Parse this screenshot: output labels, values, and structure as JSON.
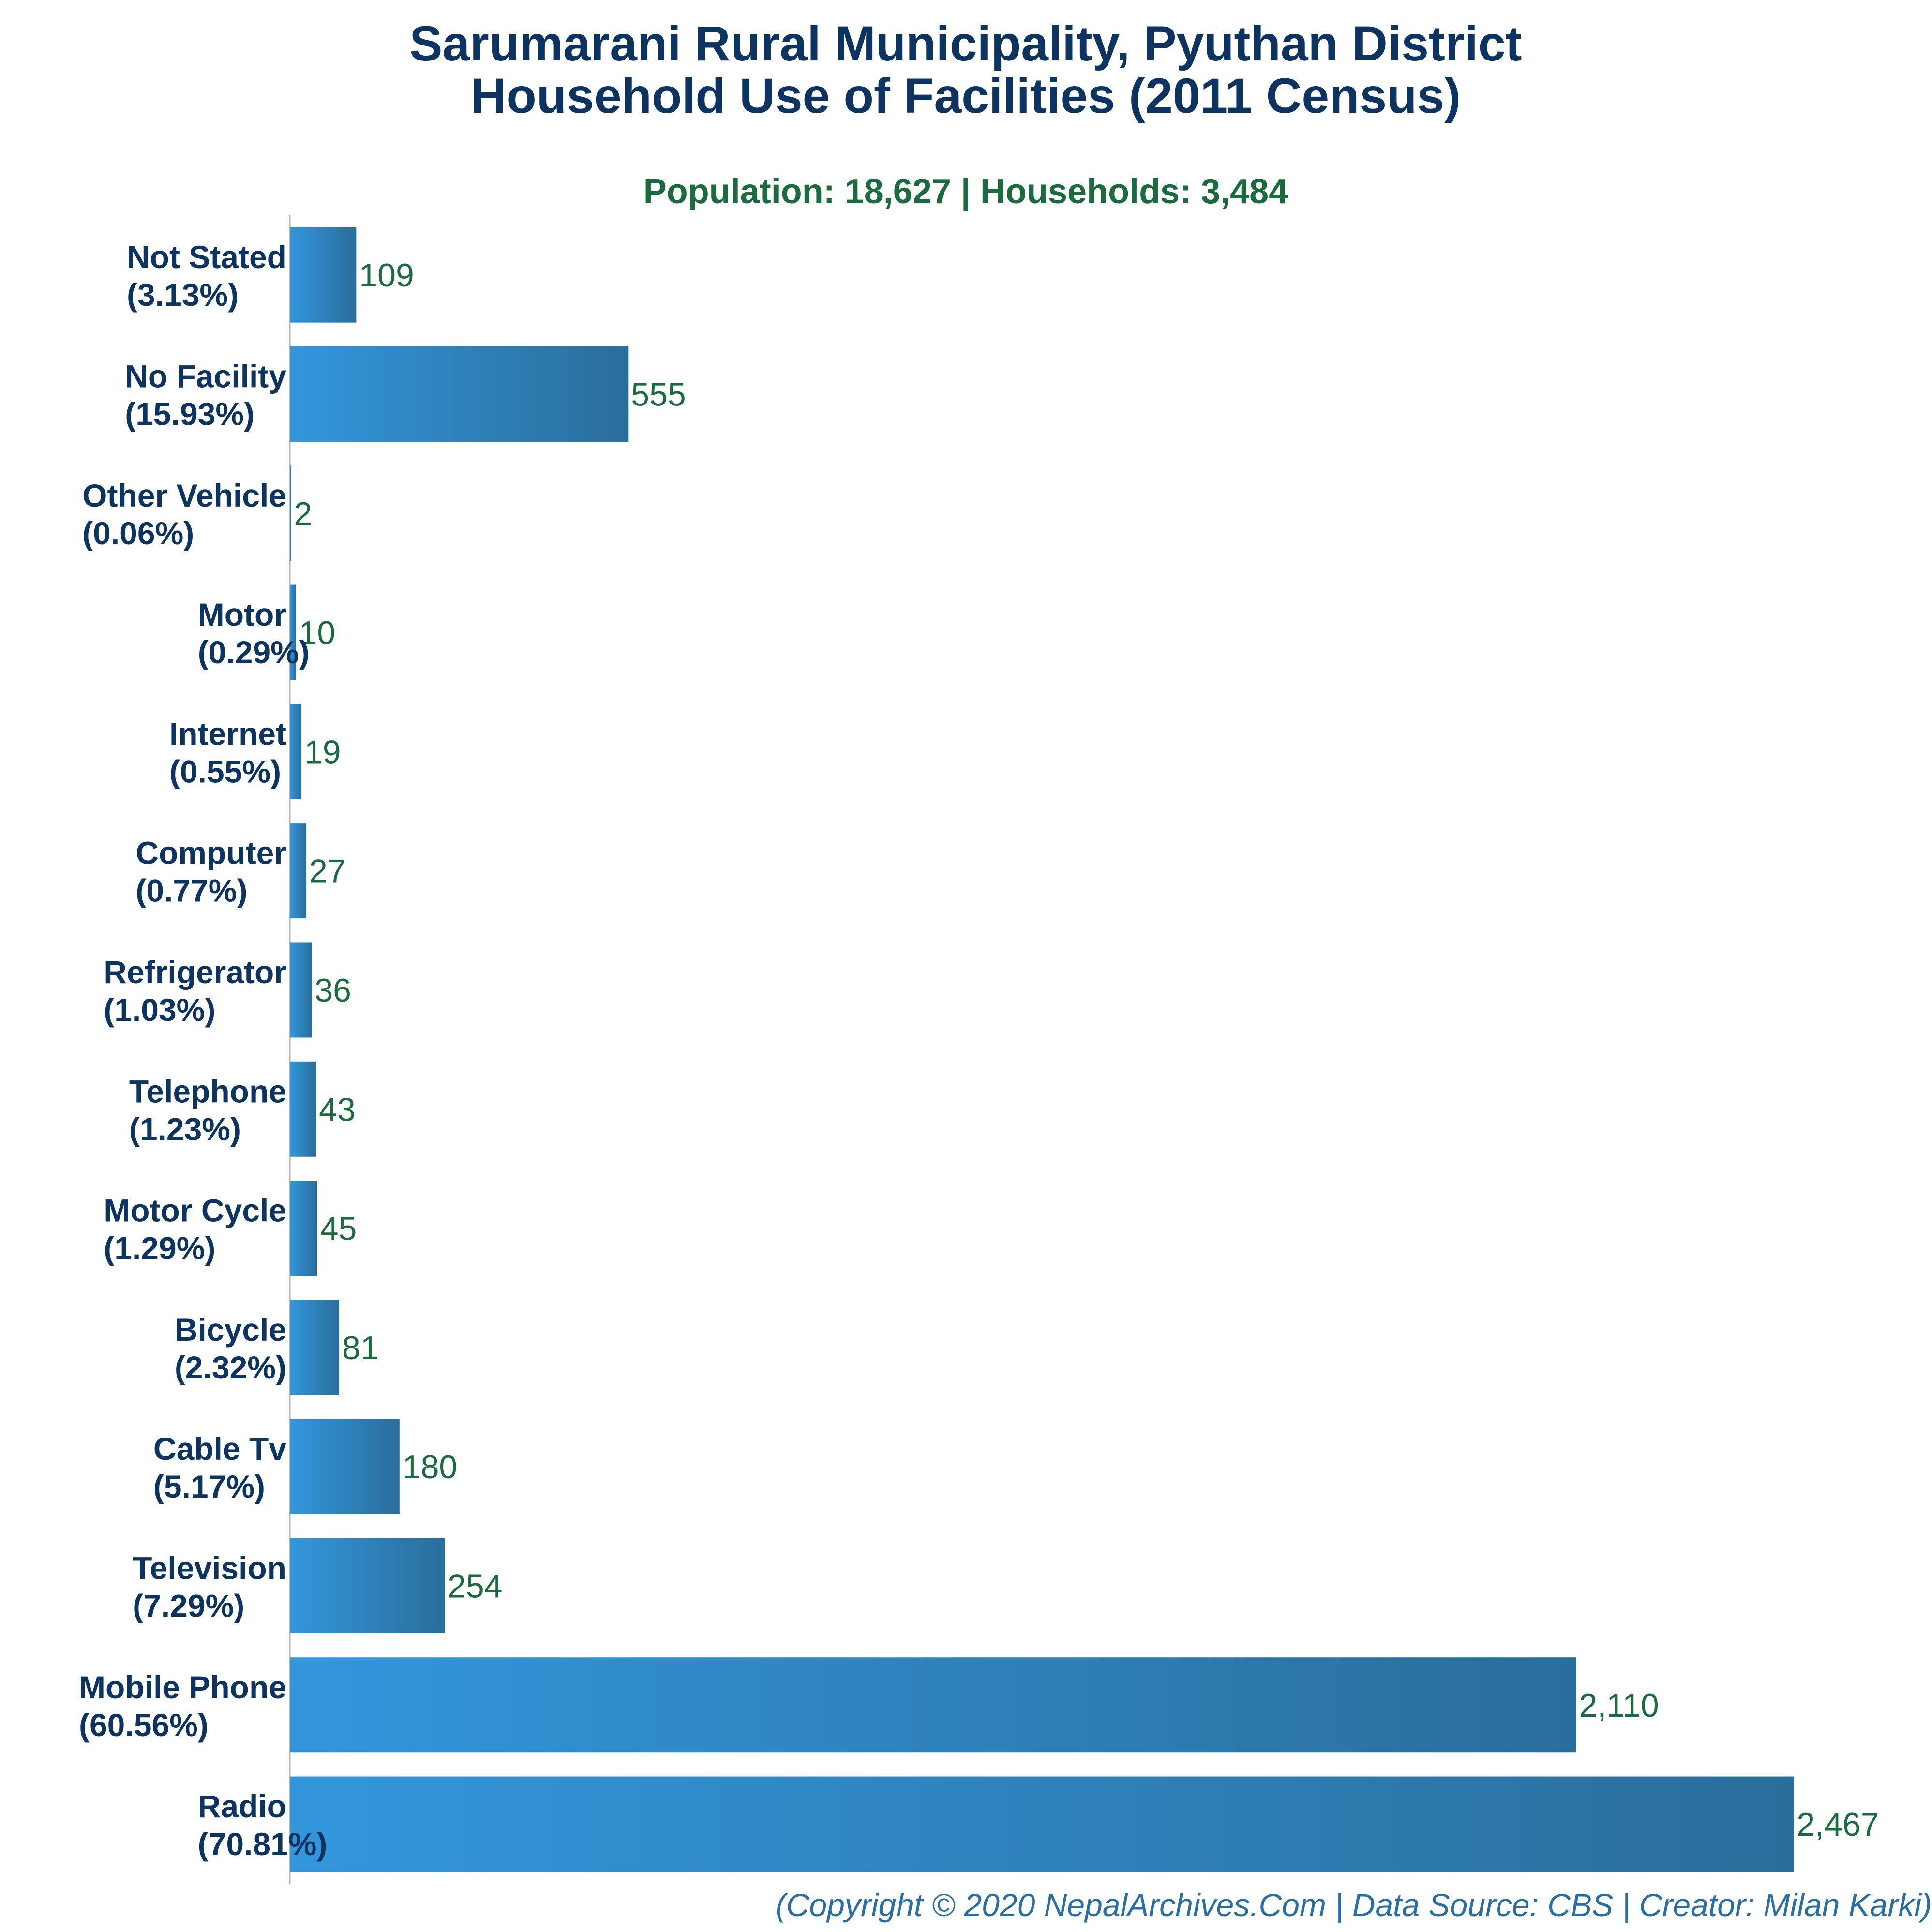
{
  "chart_data": {
    "type": "bar",
    "orientation": "horizontal",
    "title_line1": "Sarumarani Rural Municipality, Pyuthan District",
    "title_line2": "Household Use of Facilities (2011 Census)",
    "subtitle": "Population: 18,627 | Households: 3,484",
    "footer": "(Copyright © 2020 NepalArchives.Com | Data Source: CBS | Creator: Milan Karki)",
    "xlabel": "",
    "ylabel": "",
    "grid": false,
    "legend": "none",
    "xlim": [
      0,
      2500
    ],
    "bar_color_start": "#3396dc",
    "bar_color_end": "#2a6e9c",
    "categories": [
      {
        "name": "Not Stated",
        "pct": "(3.13%)",
        "value": 109,
        "value_label": "109"
      },
      {
        "name": "No Facility",
        "pct": "(15.93%)",
        "value": 555,
        "value_label": "555"
      },
      {
        "name": "Other Vehicle",
        "pct": "(0.06%)",
        "value": 2,
        "value_label": "2"
      },
      {
        "name": "Motor",
        "pct": "(0.29%)",
        "value": 10,
        "value_label": "10"
      },
      {
        "name": "Internet",
        "pct": "(0.55%)",
        "value": 19,
        "value_label": "19"
      },
      {
        "name": "Computer",
        "pct": "(0.77%)",
        "value": 27,
        "value_label": "27"
      },
      {
        "name": "Refrigerator",
        "pct": "(1.03%)",
        "value": 36,
        "value_label": "36"
      },
      {
        "name": "Telephone",
        "pct": "(1.23%)",
        "value": 43,
        "value_label": "43"
      },
      {
        "name": "Motor Cycle",
        "pct": "(1.29%)",
        "value": 45,
        "value_label": "45"
      },
      {
        "name": "Bicycle",
        "pct": "(2.32%)",
        "value": 81,
        "value_label": "81"
      },
      {
        "name": "Cable Tv",
        "pct": "(5.17%)",
        "value": 180,
        "value_label": "180"
      },
      {
        "name": "Television",
        "pct": "(7.29%)",
        "value": 254,
        "value_label": "254"
      },
      {
        "name": "Mobile Phone",
        "pct": "(60.56%)",
        "value": 2110,
        "value_label": "2,110"
      },
      {
        "name": "Radio",
        "pct": "(70.81%)",
        "value": 2467,
        "value_label": "2,467"
      }
    ]
  }
}
